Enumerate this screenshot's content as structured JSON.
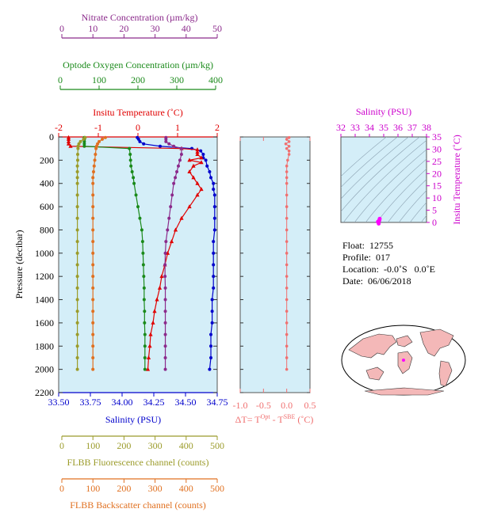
{
  "colors": {
    "salinity": "#0000cc",
    "temperature": "#e00000",
    "oxygen": "#1a8a1a",
    "nitrate": "#8b2a8b",
    "fluorescence": "#9b9b2a",
    "backscatter": "#e07020",
    "dt": "#f07070",
    "ts_axis": "#cc00cc",
    "panel_bg": "#d4eef8",
    "land": "#f4b8b8"
  },
  "axes": {
    "nitrate": {
      "label": "Nitrate Concentration (µm/kg)",
      "ticks": [
        "0",
        "10",
        "20",
        "30",
        "40",
        "50"
      ],
      "range": [
        0,
        50
      ]
    },
    "oxygen": {
      "label": "Optode Oxygen Concentration (µm/kg)",
      "ticks": [
        "0",
        "100",
        "200",
        "300",
        "400"
      ],
      "range": [
        0,
        400
      ]
    },
    "temperature": {
      "label": "Insitu Temperature (˚C)",
      "ticks": [
        "-2",
        "-1",
        "0",
        "1",
        "2"
      ],
      "range": [
        -2,
        2
      ]
    },
    "salinity": {
      "label": "Salinity (PSU)",
      "ticks": [
        "33.50",
        "33.75",
        "34.00",
        "34.25",
        "34.50",
        "34.75"
      ],
      "range": [
        33.5,
        34.75
      ]
    },
    "pressure": {
      "label": "Pressure (decibar)",
      "ticks": [
        "0",
        "200",
        "400",
        "600",
        "800",
        "1000",
        "1200",
        "1400",
        "1600",
        "1800",
        "2000",
        "2200"
      ],
      "range": [
        0,
        2200
      ]
    },
    "fluorescence": {
      "label": "FLBB Fluorescence channel (counts)",
      "ticks": [
        "0",
        "100",
        "200",
        "300",
        "400",
        "500"
      ],
      "range": [
        0,
        500
      ]
    },
    "backscatter": {
      "label": "FLBB Backscatter channel (counts)",
      "ticks": [
        "0",
        "100",
        "200",
        "300",
        "400",
        "500"
      ],
      "range": [
        0,
        500
      ]
    },
    "dt": {
      "label_prefix": "ΔT= T",
      "sup1": "Opt",
      "label_mid": " - T",
      "sup2": "SBE",
      "label_suffix": " (˚C)",
      "ticks": [
        "-1.0",
        "-0.5",
        "0.0",
        "0.5"
      ],
      "range": [
        -1.0,
        0.5
      ]
    },
    "ts_salinity": {
      "label": "Salinity (PSU)",
      "ticks": [
        "32",
        "33",
        "34",
        "35",
        "36",
        "37",
        "38"
      ],
      "range": [
        32,
        38
      ]
    },
    "ts_temperature": {
      "label": "Insitu Temperature (˚C)",
      "ticks": [
        "0",
        "5",
        "10",
        "15",
        "20",
        "25",
        "30",
        "35"
      ],
      "range": [
        0,
        35
      ]
    }
  },
  "info": {
    "float_label": "Float:",
    "float": "12755",
    "profile_label": "Profile:",
    "profile": "017",
    "location_label": "Location:",
    "location": "-0.0˚S   0.0˚E",
    "date_label": "Date:",
    "date": "06/06/2018"
  },
  "chart_data": [
    {
      "type": "line",
      "subplot": "profiles",
      "y_name": "pressure (decibar)",
      "series": [
        {
          "name": "Salinity (PSU)",
          "axis": "salinity",
          "y": [
            5,
            20,
            40,
            60,
            80,
            100,
            120,
            150,
            180,
            200,
            250,
            300,
            350,
            400,
            450,
            500,
            600,
            700,
            800,
            900,
            1000,
            1100,
            1200,
            1300,
            1400,
            1500,
            1600,
            1700,
            1800,
            1900,
            2000
          ],
          "x": [
            34.12,
            34.13,
            34.14,
            34.17,
            34.3,
            34.55,
            34.62,
            34.64,
            34.64,
            34.66,
            34.67,
            34.69,
            34.7,
            34.72,
            34.72,
            34.73,
            34.73,
            34.73,
            34.73,
            34.72,
            34.72,
            34.72,
            34.72,
            34.72,
            34.71,
            34.71,
            34.71,
            34.7,
            34.7,
            34.7,
            34.69
          ]
        },
        {
          "name": "Insitu Temperature (˚C)",
          "axis": "temperature",
          "y": [
            5,
            20,
            40,
            60,
            80,
            100,
            110,
            130,
            150,
            180,
            200,
            220,
            250,
            300,
            350,
            400,
            450,
            500,
            600,
            700,
            800,
            900,
            1000,
            1100,
            1200,
            1300,
            1400,
            1500,
            1600,
            1700,
            1800,
            1900,
            2000
          ],
          "x": [
            -1.75,
            -1.75,
            -1.75,
            -1.75,
            -1.7,
            1.1,
            1.5,
            1.5,
            1.5,
            1.6,
            1.3,
            1.6,
            1.4,
            1.3,
            1.4,
            1.5,
            1.6,
            1.5,
            1.3,
            1.1,
            0.95,
            0.85,
            0.75,
            0.68,
            0.6,
            0.55,
            0.48,
            0.42,
            0.38,
            0.32,
            0.3,
            0.27,
            0.25
          ]
        },
        {
          "name": "Optode Oxygen Concentration (µm/kg)",
          "axis": "oxygen",
          "y": [
            5,
            20,
            40,
            60,
            80,
            100,
            150,
            200,
            250,
            300,
            350,
            400,
            500,
            600,
            700,
            800,
            900,
            1000,
            1100,
            1200,
            1300,
            1400,
            1500,
            1600,
            1700,
            1800,
            1900,
            2000
          ],
          "x": [
            62,
            62,
            62,
            62,
            62,
            178,
            180,
            181,
            182,
            185,
            188,
            190,
            195,
            200,
            205,
            210,
            212,
            213,
            214,
            215,
            216,
            216,
            217,
            217,
            218,
            218,
            218,
            218
          ]
        },
        {
          "name": "Nitrate Concentration (µm/kg)",
          "axis": "nitrate",
          "y": [
            5,
            20,
            40,
            60,
            80,
            100,
            150,
            200,
            250,
            300,
            350,
            400,
            500,
            600,
            700,
            800,
            900,
            1000,
            1100,
            1200,
            1300,
            1400,
            1500,
            1600,
            1700,
            1800,
            1900,
            2000
          ],
          "x": [
            33.5,
            33.5,
            33.5,
            34.5,
            36,
            38.5,
            38.5,
            38,
            37.5,
            37,
            36.5,
            36,
            35.5,
            35,
            34.5,
            34,
            33.5,
            33.3,
            33.2,
            33.2,
            33.3,
            33.3,
            33.3,
            33.3,
            33.3,
            33.3,
            33.3,
            33.3
          ]
        },
        {
          "name": "FLBB Fluorescence channel (counts)",
          "axis": "fluorescence",
          "y": [
            5,
            20,
            40,
            60,
            80,
            100,
            150,
            200,
            250,
            300,
            350,
            400,
            500,
            600,
            700,
            800,
            900,
            1000,
            1100,
            1200,
            1300,
            1400,
            1500,
            1600,
            1700,
            1800,
            1900,
            2000
          ],
          "x": [
            75,
            70,
            60,
            55,
            52,
            52,
            51,
            51,
            50,
            50,
            50,
            50,
            50,
            50,
            50,
            50,
            50,
            50,
            50,
            50,
            50,
            50,
            50,
            50,
            50,
            50,
            50,
            50
          ]
        },
        {
          "name": "FLBB Backscatter channel (counts)",
          "axis": "backscatter",
          "y": [
            5,
            20,
            40,
            60,
            80,
            100,
            150,
            200,
            250,
            300,
            350,
            400,
            500,
            600,
            700,
            800,
            900,
            1000,
            1100,
            1200,
            1300,
            1400,
            1500,
            1600,
            1700,
            1800,
            1900,
            2000
          ],
          "x": [
            140,
            130,
            120,
            115,
            112,
            110,
            108,
            106,
            104,
            102,
            100,
            100,
            100,
            100,
            100,
            100,
            100,
            100,
            100,
            100,
            100,
            100,
            100,
            100,
            100,
            100,
            100,
            100
          ]
        }
      ]
    },
    {
      "type": "scatter",
      "subplot": "dT",
      "series": [
        {
          "name": "ΔT",
          "axis": "dt",
          "y": [
            5,
            20,
            40,
            60,
            80,
            100,
            120,
            150,
            200,
            250,
            300,
            350,
            400,
            500,
            600,
            700,
            800,
            900,
            1000,
            1100,
            1200,
            1300,
            1400,
            1500,
            1600,
            1700,
            1800,
            1900,
            2000
          ],
          "x": [
            0.05,
            0.0,
            0.05,
            -0.02,
            0.05,
            0.0,
            0.05,
            0.05,
            0.02,
            0.0,
            0.0,
            0.0,
            0.0,
            0.0,
            0.0,
            0.0,
            0.0,
            0.0,
            0.0,
            0.0,
            0.0,
            0.0,
            0.0,
            0.0,
            0.0,
            0.0,
            0.0,
            0.0,
            0.0
          ]
        }
      ]
    },
    {
      "type": "scatter",
      "subplot": "TS",
      "series": [
        {
          "name": "T-S",
          "salinity": [
            34.6,
            34.7,
            34.72,
            34.69,
            34.65
          ],
          "temperature": [
            0.3,
            1.0,
            1.5,
            0.8,
            -0.5
          ]
        }
      ]
    }
  ]
}
